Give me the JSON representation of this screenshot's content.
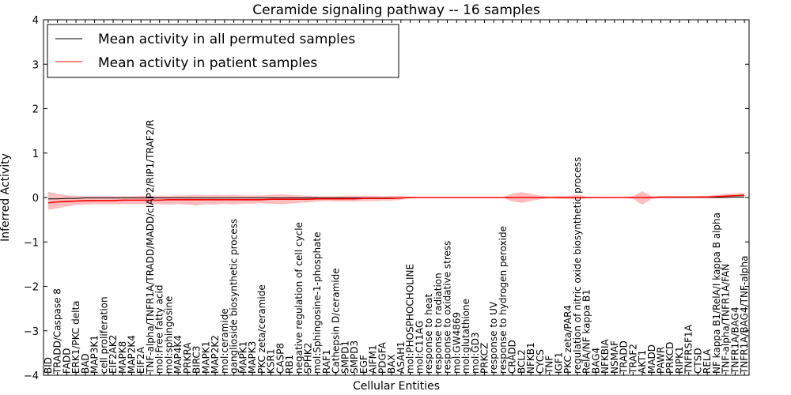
{
  "chart_data": {
    "type": "line",
    "title": "Ceramide signaling pathway -- 16 samples",
    "xlabel": "Cellular Entities",
    "ylabel": "Inferred Activity",
    "ylim": [
      -4,
      4
    ],
    "yticks": [
      -4,
      -3,
      -2,
      -1,
      0,
      1,
      2,
      3,
      4
    ],
    "grid": false,
    "legend_position": "top-left",
    "colors": {
      "permuted": "#000000",
      "patient": "#ff0000",
      "band": "#ff9999"
    },
    "categories": [
      "BID",
      "TRADD/Caspase 8",
      "FADD",
      "ERK1/PKC delta",
      "BAD",
      "MAP3K1",
      "cell proliferation",
      "EIF2AK2",
      "MAPK8",
      "MAP2K4",
      "EIF2A",
      "TNF-alpha/TNFR1A/TRADD/MADD/cIAP2/RIP1/TRAF2/R",
      "mol:Free fatty acid",
      "mol:sphingosine",
      "MAP4K4",
      "PRKRA",
      "BIRC3",
      "MAPK1",
      "MAP2K2",
      "mol:ceramide",
      "ganglioside biosynthetic process",
      "MAPK1",
      "MAPK3",
      "PKC zeta/ceramide",
      "KSR1",
      "CASP8",
      "RB1",
      "negative regulation of cell cycle",
      "SPHK2",
      "mol:Sphingosine-1-phosphate",
      "RAF1",
      "Cathepsin D/ceramide",
      "SMPD1",
      "SMPD3",
      "EGF",
      "AIFM1",
      "PDGFA",
      "BAX",
      "ASAH1",
      "mol:PHOSPHOCHOLINE",
      "mol:C11AG",
      "response to heat",
      "response to radiation",
      "response to oxidative stress",
      "mol:GW4869",
      "mol:glutathione",
      "mol:GD3",
      "PRKCZ",
      "response to UV",
      "response to hydrogen peroxide",
      "CRADD",
      "BCL2",
      "NFKB1",
      "CYCS",
      "TNF",
      "IGF1",
      "PKC zeta/PAR4",
      "regulation of nitric oxide biosynthetic process",
      "RelA/NF kappa B1",
      "BAG4",
      "NFKBIA",
      "NSMAF",
      "TRADD",
      "TRAF2",
      "AKT1",
      "MADD",
      "PAWR",
      "PRKCD",
      "RIPK1",
      "TNFRSF1A",
      "CTSD",
      "RELA",
      "NF kappa B1/RelA/I kappa B alpha",
      "TNF-alpha/TNFR1A/FAN",
      "TNFR1A/BAG4",
      "TNFR1A/BAG4/TNF-alpha"
    ],
    "series": [
      {
        "name": "Mean activity in all permuted samples",
        "values": [
          -0.03,
          -0.03,
          -0.02,
          -0.02,
          -0.01,
          -0.01,
          -0.01,
          -0.01,
          -0.01,
          -0.01,
          -0.01,
          -0.01,
          -0.01,
          -0.01,
          -0.01,
          -0.01,
          -0.01,
          -0.01,
          -0.01,
          -0.01,
          -0.01,
          -0.01,
          -0.01,
          -0.01,
          -0.01,
          -0.01,
          -0.01,
          -0.01,
          -0.01,
          -0.01,
          -0.01,
          -0.01,
          -0.01,
          -0.01,
          -0.01,
          -0.01,
          -0.01,
          -0.01,
          -0.01,
          0.0,
          0.0,
          0.0,
          0.0,
          0.0,
          0.0,
          0.0,
          0.0,
          0.0,
          0.0,
          0.0,
          0.0,
          0.0,
          0.0,
          0.0,
          0.0,
          0.0,
          0.0,
          0.0,
          0.0,
          0.0,
          0.0,
          0.0,
          0.0,
          0.0,
          0.0,
          0.0,
          0.0,
          0.0,
          0.0,
          0.0,
          0.0,
          0.0,
          0.0,
          0.0,
          0.01,
          0.01
        ]
      },
      {
        "name": "Mean activity in patient samples",
        "values": [
          -0.12,
          -0.1,
          -0.09,
          -0.08,
          -0.07,
          -0.07,
          -0.07,
          -0.07,
          -0.06,
          -0.06,
          -0.06,
          -0.06,
          -0.06,
          -0.05,
          -0.05,
          -0.05,
          -0.05,
          -0.05,
          -0.05,
          -0.05,
          -0.05,
          -0.05,
          -0.05,
          -0.05,
          -0.04,
          -0.04,
          -0.04,
          -0.04,
          -0.04,
          -0.03,
          -0.03,
          -0.03,
          -0.03,
          -0.03,
          -0.02,
          -0.02,
          -0.02,
          -0.02,
          -0.01,
          0.0,
          0.0,
          0.0,
          0.0,
          0.0,
          0.0,
          0.0,
          0.0,
          0.0,
          0.0,
          0.0,
          0.0,
          0.0,
          0.0,
          0.0,
          0.0,
          0.0,
          0.0,
          0.0,
          0.0,
          0.0,
          0.0,
          0.0,
          0.0,
          0.0,
          0.0,
          0.0,
          0.01,
          0.01,
          0.01,
          0.01,
          0.01,
          0.01,
          0.02,
          0.03,
          0.04,
          0.05
        ]
      }
    ],
    "patient_band": {
      "lower": [
        -0.28,
        -0.24,
        -0.2,
        -0.17,
        -0.16,
        -0.15,
        -0.15,
        -0.15,
        -0.15,
        -0.15,
        -0.15,
        -0.15,
        -0.15,
        -0.16,
        -0.15,
        -0.16,
        -0.18,
        -0.15,
        -0.16,
        -0.14,
        -0.16,
        -0.14,
        -0.14,
        -0.13,
        -0.14,
        -0.15,
        -0.14,
        -0.12,
        -0.11,
        -0.09,
        -0.08,
        -0.09,
        -0.09,
        -0.09,
        -0.08,
        -0.08,
        -0.07,
        -0.07,
        -0.05,
        -0.02,
        -0.01,
        -0.01,
        -0.01,
        -0.01,
        -0.01,
        -0.01,
        -0.01,
        -0.01,
        -0.01,
        -0.01,
        -0.09,
        -0.12,
        -0.08,
        -0.04,
        -0.02,
        -0.03,
        -0.03,
        -0.05,
        -0.02,
        -0.01,
        -0.01,
        -0.01,
        -0.01,
        -0.03,
        -0.16,
        -0.03,
        -0.01,
        -0.01,
        -0.01,
        -0.01,
        -0.01,
        -0.01,
        -0.01,
        0.0,
        0.0,
        0.01
      ],
      "upper": [
        0.13,
        0.08,
        0.05,
        0.04,
        0.03,
        0.03,
        0.03,
        0.03,
        0.03,
        0.03,
        0.04,
        0.04,
        0.04,
        0.04,
        0.05,
        0.05,
        0.06,
        0.05,
        0.06,
        0.05,
        0.06,
        0.05,
        0.05,
        0.05,
        0.06,
        0.07,
        0.06,
        0.05,
        0.04,
        0.03,
        0.03,
        0.03,
        0.04,
        0.04,
        0.04,
        0.04,
        0.03,
        0.04,
        0.03,
        0.02,
        0.01,
        0.01,
        0.01,
        0.01,
        0.01,
        0.01,
        0.01,
        0.01,
        0.01,
        0.01,
        0.09,
        0.12,
        0.08,
        0.04,
        0.02,
        0.03,
        0.03,
        0.06,
        0.02,
        0.01,
        0.01,
        0.01,
        0.01,
        0.03,
        0.14,
        0.03,
        0.02,
        0.02,
        0.02,
        0.02,
        0.03,
        0.04,
        0.06,
        0.08,
        0.1,
        0.1
      ]
    }
  }
}
